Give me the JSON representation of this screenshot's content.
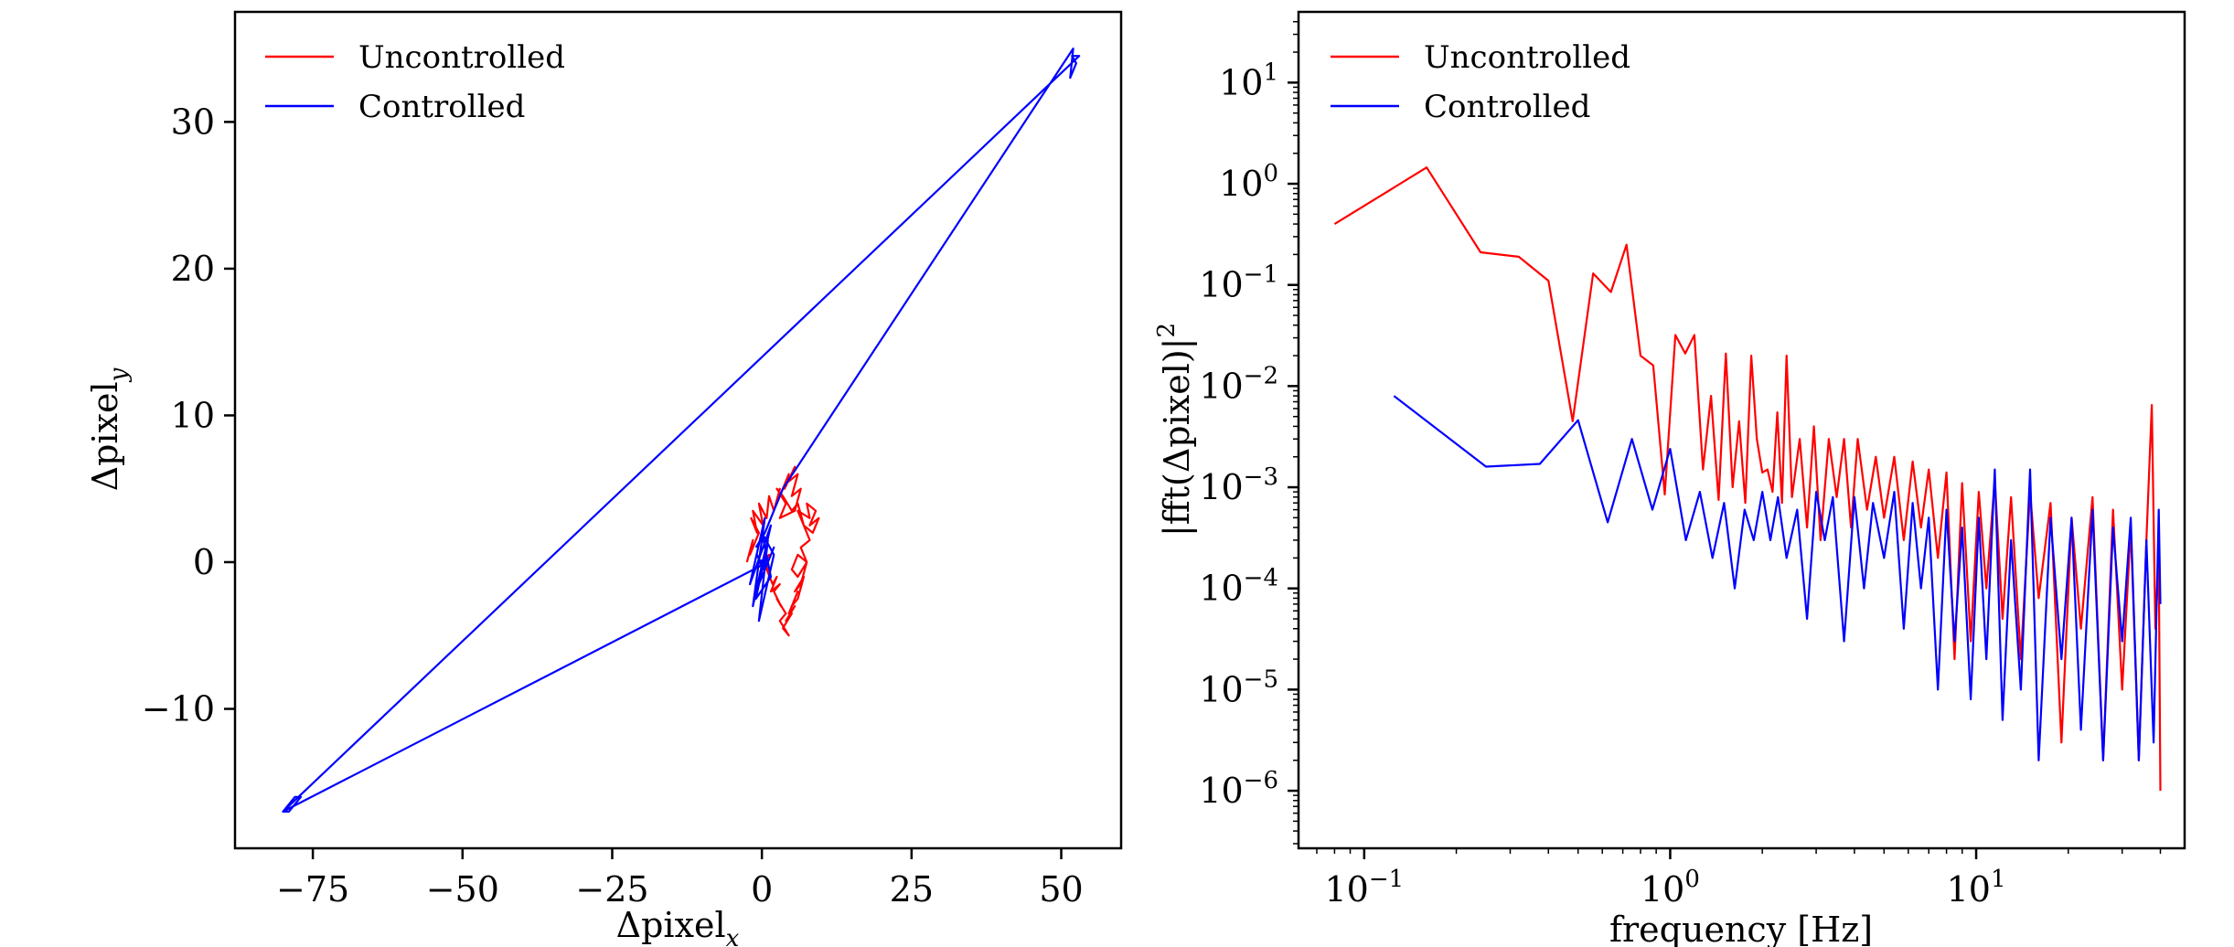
{
  "chart_data": [
    {
      "type": "line",
      "xlabel": "Δpixel",
      "xlabel_sub": "x",
      "ylabel": "Δpixel",
      "ylabel_sub": "y",
      "xlim": [
        -88,
        60
      ],
      "ylim": [
        -19.5,
        37.5
      ],
      "xticks": [
        -75,
        -50,
        -25,
        0,
        25,
        50
      ],
      "xtick_labels": [
        "−75",
        "−50",
        "−25",
        "0",
        "25",
        "50"
      ],
      "yticks": [
        -10,
        0,
        10,
        20,
        30
      ],
      "ytick_labels": [
        "−10",
        "0",
        "10",
        "20",
        "30"
      ],
      "grid": false,
      "legend_position": "top-left",
      "series": [
        {
          "name": "Uncontrolled",
          "color": "#ff0000",
          "x": [
            -2.5,
            -1.5,
            -2,
            -0.5,
            -1.8,
            -0.8,
            -1.5,
            0.2,
            -0.5,
            0.8,
            1.2,
            2,
            3,
            2.5,
            4,
            3,
            4.5,
            3.8,
            5.5,
            4.5,
            6,
            5,
            6.5,
            5.5,
            3,
            4,
            2.5,
            3.5,
            5,
            6,
            7,
            6,
            8,
            7.5,
            9,
            8,
            9.5,
            8.5,
            7,
            8,
            6.5,
            7.5,
            6,
            5,
            6,
            7.5,
            6.5,
            5.5,
            7,
            6,
            5,
            6,
            4.5,
            5.5,
            4,
            5,
            3.5,
            4.5,
            3,
            4,
            2.5,
            3.2,
            2,
            3,
            1.5,
            2.5,
            1.8,
            0.8,
            1.5,
            0.5,
            1.2,
            0
          ],
          "y": [
            0,
            1.5,
            0.5,
            2,
            3,
            2,
            3.5,
            2.5,
            4,
            3,
            4.5,
            3.5,
            5,
            4,
            5.5,
            4.5,
            6,
            5,
            6.5,
            5.5,
            6,
            4.5,
            5,
            3.5,
            3,
            4,
            5,
            4.5,
            3.5,
            4,
            2.5,
            3.5,
            3,
            4,
            3.5,
            2.5,
            3,
            2,
            2.5,
            1.5,
            1,
            0,
            0.5,
            -0.5,
            -1,
            0,
            -1.5,
            -2,
            -1,
            -2.5,
            -3,
            -2,
            -3.5,
            -3,
            -4,
            -3.5,
            -4.5,
            -5,
            -4,
            -3.5,
            -2.5,
            -3,
            -2,
            -1.5,
            -2,
            -1,
            -1.5,
            -0.5,
            -1,
            0,
            0.5,
            0
          ]
        },
        {
          "name": "Controlled",
          "color": "#0000ff",
          "x": [
            -1,
            0.5,
            1.5,
            2.5,
            3.5,
            52,
            51.5,
            52.5,
            51.8,
            53,
            -80,
            -78,
            -77,
            -79,
            -80,
            1,
            0,
            2,
            -1,
            1.5,
            -2,
            0.5,
            -1.5,
            1,
            -0.5,
            2,
            0,
            1.5,
            -1,
            0.8,
            0.2,
            -0.8,
            0,
            0.8,
            -0.2,
            0
          ],
          "y": [
            1,
            2,
            3,
            4,
            5,
            35,
            33,
            34,
            34.5,
            34.5,
            -17,
            -16,
            -16,
            -17,
            -17,
            0,
            -1,
            1,
            -2,
            2.5,
            -1.5,
            3,
            -3,
            1.5,
            -4,
            0.5,
            2,
            -1,
            -2.5,
            1,
            -0.5,
            0.5,
            -0.2,
            0.2,
            0.1,
            0
          ]
        }
      ]
    },
    {
      "type": "line",
      "xlabel": "frequency [Hz]",
      "ylabel": "|fft(Δpixel)|",
      "ylabel_sup": "2",
      "xscale": "log",
      "yscale": "log",
      "xlim": [
        0.061,
        48
      ],
      "ylim": [
        2.7e-07,
        50
      ],
      "xticks": [
        0.1,
        1,
        10
      ],
      "xtick_labels": [
        {
          "base": "10",
          "exp": "−1"
        },
        {
          "base": "10",
          "exp": "0"
        },
        {
          "base": "10",
          "exp": "1"
        }
      ],
      "yticks": [
        10,
        1,
        0.1,
        0.01,
        0.001,
        0.0001,
        1e-05,
        1e-06
      ],
      "ytick_labels": [
        {
          "base": "10",
          "exp": "1"
        },
        {
          "base": "10",
          "exp": "0"
        },
        {
          "base": "10",
          "exp": "−1"
        },
        {
          "base": "10",
          "exp": "−2"
        },
        {
          "base": "10",
          "exp": "−3"
        },
        {
          "base": "10",
          "exp": "−4"
        },
        {
          "base": "10",
          "exp": "−5"
        },
        {
          "base": "10",
          "exp": "−6"
        }
      ],
      "grid": false,
      "legend_position": "top-left",
      "series": [
        {
          "name": "Uncontrolled",
          "color": "#ff0000",
          "x": [
            0.08,
            0.16,
            0.24,
            0.32,
            0.4,
            0.48,
            0.56,
            0.64,
            0.72,
            0.8,
            0.88,
            0.96,
            1.04,
            1.12,
            1.2,
            1.28,
            1.36,
            1.44,
            1.52,
            1.6,
            1.68,
            1.76,
            1.84,
            1.92,
            2.0,
            2.08,
            2.16,
            2.24,
            2.32,
            2.4,
            2.5,
            2.65,
            2.8,
            2.95,
            3.1,
            3.3,
            3.5,
            3.7,
            3.9,
            4.1,
            4.4,
            4.7,
            5.0,
            5.4,
            5.8,
            6.2,
            6.6,
            7.0,
            7.5,
            8.0,
            8.5,
            9.0,
            9.6,
            10.2,
            10.8,
            11.5,
            12.2,
            13.0,
            14.0,
            15.0,
            16.0,
            17.5,
            19.0,
            20.5,
            22.0,
            24.0,
            26.0,
            28.0,
            30.0,
            32.0,
            34.0,
            36.0,
            37.5,
            38.5,
            39.5,
            40.0
          ],
          "y": [
            0.4,
            1.45,
            0.21,
            0.19,
            0.11,
            0.0045,
            0.13,
            0.085,
            0.25,
            0.02,
            0.016,
            0.00085,
            0.032,
            0.021,
            0.032,
            0.0015,
            0.008,
            0.00075,
            0.021,
            0.001,
            0.0045,
            0.0007,
            0.02,
            0.003,
            0.0014,
            0.0015,
            0.0009,
            0.0055,
            0.0007,
            0.02,
            0.0008,
            0.003,
            0.0004,
            0.004,
            0.0003,
            0.003,
            0.0008,
            0.003,
            0.0004,
            0.003,
            0.0006,
            0.002,
            0.0005,
            0.002,
            0.0003,
            0.0018,
            0.0004,
            0.0015,
            0.0002,
            0.0014,
            2e-05,
            0.0011,
            3e-05,
            0.0009,
            0.0001,
            0.0012,
            5e-05,
            0.0008,
            2e-05,
            0.0009,
            8e-05,
            0.0007,
            3e-06,
            0.0005,
            4e-05,
            0.0008,
            2e-06,
            0.0006,
            1e-05,
            0.0004,
            2e-06,
            0.0003,
            0.0065,
            4e-05,
            0.0002,
            1e-06
          ]
        },
        {
          "name": "Controlled",
          "color": "#0000ff",
          "x": [
            0.125,
            0.25,
            0.375,
            0.5,
            0.625,
            0.75,
            0.875,
            1.0,
            1.125,
            1.25,
            1.375,
            1.5,
            1.625,
            1.75,
            1.875,
            2.0,
            2.125,
            2.25,
            2.4,
            2.6,
            2.8,
            3.0,
            3.2,
            3.4,
            3.7,
            4.0,
            4.3,
            4.6,
            5.0,
            5.4,
            5.8,
            6.2,
            6.6,
            7.0,
            7.5,
            8.0,
            8.5,
            9.0,
            9.6,
            10.2,
            10.8,
            11.5,
            12.2,
            13.0,
            14.0,
            15.0,
            16.0,
            17.5,
            19.0,
            20.5,
            22.0,
            24.0,
            26.0,
            28.0,
            30.0,
            32.0,
            34.0,
            36.0,
            38.0,
            39.5,
            40.0
          ],
          "y": [
            0.008,
            0.0016,
            0.0017,
            0.0046,
            0.00045,
            0.003,
            0.0006,
            0.0024,
            0.0003,
            0.0009,
            0.0002,
            0.0007,
            0.0001,
            0.0006,
            0.0003,
            0.0009,
            0.0003,
            0.0008,
            0.0002,
            0.0006,
            5e-05,
            0.0009,
            0.0003,
            0.0008,
            3e-05,
            0.0008,
            0.0001,
            0.0007,
            0.0002,
            0.0009,
            4e-05,
            0.0007,
            0.0001,
            0.0005,
            1e-05,
            0.0006,
            3e-05,
            0.0004,
            8e-06,
            0.0005,
            2e-05,
            0.0015,
            5e-06,
            0.0003,
            1e-05,
            0.0015,
            2e-06,
            0.0005,
            2e-05,
            0.0005,
            4e-06,
            0.0006,
            2e-06,
            0.0004,
            3e-05,
            0.0005,
            2e-06,
            0.0003,
            3e-06,
            0.0006,
            7e-05
          ]
        }
      ]
    }
  ]
}
